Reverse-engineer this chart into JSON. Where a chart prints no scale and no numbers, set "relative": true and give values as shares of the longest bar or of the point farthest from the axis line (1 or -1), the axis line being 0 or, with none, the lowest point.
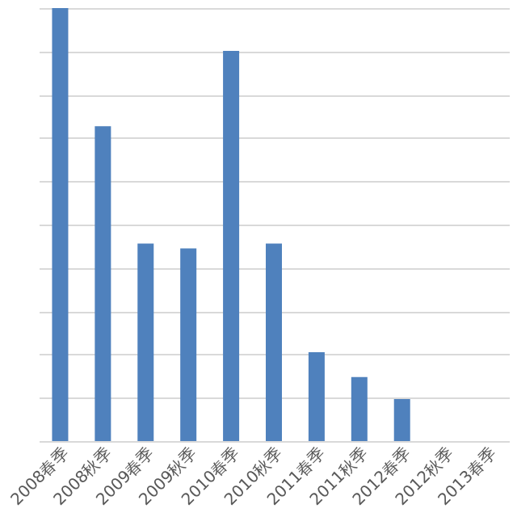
{
  "chart_data": {
    "type": "bar",
    "relative": true,
    "grid": "y",
    "color": "#4f81bd",
    "categories": [
      "2008春季",
      "2008秋季",
      "2009春季",
      "2009秋季",
      "2010春季",
      "2010秋季",
      "2011春季",
      "2011秋季",
      "2012春季",
      "2012秋季",
      "2013春季"
    ],
    "values": [
      1,
      0.727,
      0.456,
      0.445,
      0.901,
      0.456,
      0.205,
      0.148,
      0.097,
      0,
      0
    ]
  }
}
